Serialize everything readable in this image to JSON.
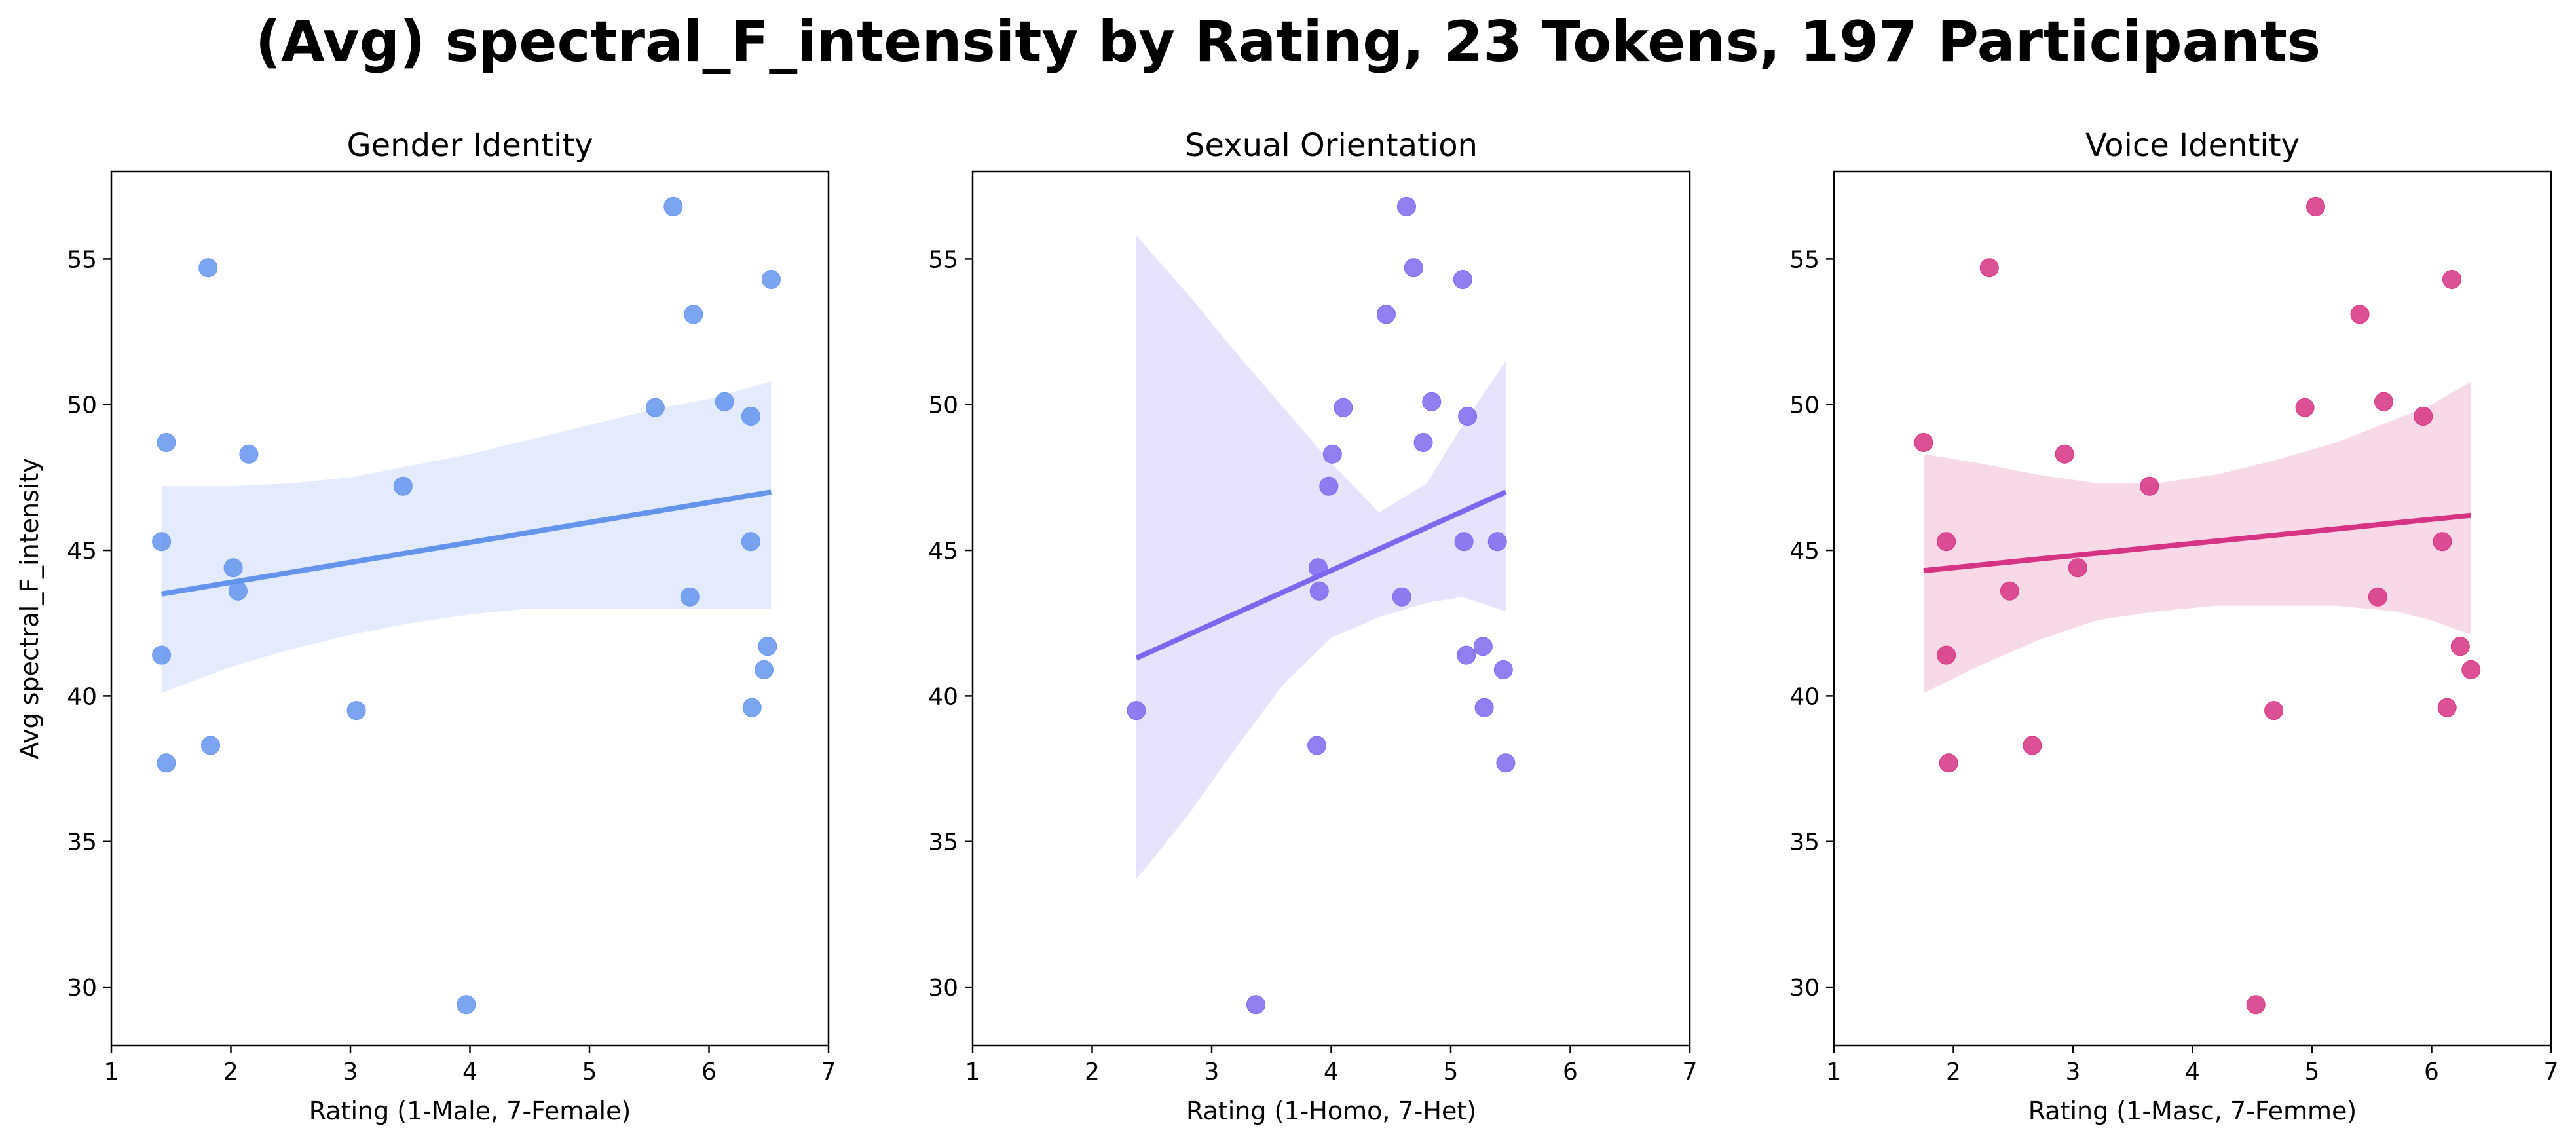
{
  "figure": {
    "title": "(Avg) spectral_F_intensity by Rating, 23 Tokens, 197 Participants"
  },
  "chart_data": [
    {
      "type": "scatter",
      "title": "Gender Identity",
      "xlabel": "Rating (1-Male, 7-Female)",
      "ylabel": "Avg spectral_F_intensity",
      "xlim": [
        1,
        7
      ],
      "ylim": [
        28,
        58
      ],
      "xticks": [
        1,
        2,
        3,
        4,
        5,
        6,
        7
      ],
      "yticks": [
        30,
        35,
        40,
        45,
        50,
        55
      ],
      "color": "#6495ED",
      "band_color": "#e3ebfc",
      "grid": false,
      "points": [
        [
          1.42,
          45.3
        ],
        [
          1.42,
          41.4
        ],
        [
          1.46,
          48.7
        ],
        [
          1.46,
          37.7
        ],
        [
          1.81,
          54.7
        ],
        [
          1.83,
          38.3
        ],
        [
          2.02,
          44.4
        ],
        [
          2.06,
          43.6
        ],
        [
          2.15,
          48.3
        ],
        [
          3.05,
          39.5
        ],
        [
          3.44,
          47.2
        ],
        [
          3.97,
          29.4
        ],
        [
          5.55,
          49.9
        ],
        [
          5.7,
          56.8
        ],
        [
          5.84,
          43.4
        ],
        [
          5.87,
          53.1
        ],
        [
          6.13,
          50.1
        ],
        [
          6.35,
          49.6
        ],
        [
          6.35,
          45.3
        ],
        [
          6.36,
          39.6
        ],
        [
          6.46,
          40.9
        ],
        [
          6.49,
          41.7
        ],
        [
          6.52,
          54.3
        ]
      ],
      "fit": {
        "x0": 1.42,
        "y0": 43.5,
        "x1": 6.52,
        "y1": 47.0
      },
      "ci_band": {
        "x": [
          1.42,
          2.0,
          2.5,
          3.0,
          3.5,
          4.0,
          4.5,
          5.0,
          5.5,
          6.0,
          6.52
        ],
        "upper": [
          47.2,
          47.2,
          47.3,
          47.5,
          47.9,
          48.3,
          48.8,
          49.3,
          49.8,
          50.2,
          50.8
        ],
        "lower": [
          40.1,
          41.0,
          41.6,
          42.1,
          42.5,
          42.8,
          43.0,
          43.0,
          43.0,
          43.0,
          43.0
        ]
      }
    },
    {
      "type": "scatter",
      "title": "Sexual Orientation",
      "xlabel": "Rating (1-Homo, 7-Het)",
      "ylabel": "",
      "xlim": [
        1,
        7
      ],
      "ylim": [
        28,
        58
      ],
      "xticks": [
        1,
        2,
        3,
        4,
        5,
        6,
        7
      ],
      "yticks": [
        30,
        35,
        40,
        45,
        50,
        55
      ],
      "color": "#7B68EE",
      "band_color": "#e6e3fc",
      "grid": false,
      "points": [
        [
          2.37,
          39.5
        ],
        [
          3.37,
          29.4
        ],
        [
          3.88,
          38.3
        ],
        [
          3.89,
          44.4
        ],
        [
          3.9,
          43.6
        ],
        [
          3.98,
          47.2
        ],
        [
          4.01,
          48.3
        ],
        [
          4.1,
          49.9
        ],
        [
          4.46,
          53.1
        ],
        [
          4.59,
          43.4
        ],
        [
          4.63,
          56.8
        ],
        [
          4.69,
          54.7
        ],
        [
          4.77,
          48.7
        ],
        [
          4.84,
          50.1
        ],
        [
          5.1,
          54.3
        ],
        [
          5.11,
          45.3
        ],
        [
          5.13,
          41.4
        ],
        [
          5.14,
          49.6
        ],
        [
          5.27,
          41.7
        ],
        [
          5.28,
          39.6
        ],
        [
          5.39,
          45.3
        ],
        [
          5.44,
          40.9
        ],
        [
          5.46,
          37.7
        ]
      ],
      "fit": {
        "x0": 2.37,
        "y0": 41.3,
        "x1": 5.46,
        "y1": 47.0
      },
      "ci_band": {
        "x": [
          2.37,
          2.8,
          3.2,
          3.6,
          4.0,
          4.4,
          4.8,
          5.1,
          5.46
        ],
        "upper": [
          55.8,
          53.8,
          51.8,
          49.9,
          48.0,
          46.3,
          47.3,
          49.3,
          51.5
        ],
        "lower": [
          33.7,
          35.9,
          38.2,
          40.4,
          42.0,
          42.7,
          43.2,
          43.4,
          42.9
        ]
      }
    },
    {
      "type": "scatter",
      "title": "Voice Identity",
      "xlabel": "Rating (1-Masc, 7-Femme)",
      "ylabel": "",
      "xlim": [
        1,
        7
      ],
      "ylim": [
        28,
        58
      ],
      "xticks": [
        1,
        2,
        3,
        4,
        5,
        6,
        7
      ],
      "yticks": [
        30,
        35,
        40,
        45,
        50,
        55
      ],
      "color": "#D63384",
      "band_color": "#f8d9e8",
      "grid": false,
      "points": [
        [
          1.75,
          48.7
        ],
        [
          1.94,
          45.3
        ],
        [
          1.94,
          41.4
        ],
        [
          1.96,
          37.7
        ],
        [
          2.3,
          54.7
        ],
        [
          2.47,
          43.6
        ],
        [
          2.66,
          38.3
        ],
        [
          2.93,
          48.3
        ],
        [
          3.04,
          44.4
        ],
        [
          3.64,
          47.2
        ],
        [
          4.53,
          29.4
        ],
        [
          4.68,
          39.5
        ],
        [
          4.94,
          49.9
        ],
        [
          5.03,
          56.8
        ],
        [
          5.4,
          53.1
        ],
        [
          5.55,
          43.4
        ],
        [
          5.6,
          50.1
        ],
        [
          5.93,
          49.6
        ],
        [
          6.09,
          45.3
        ],
        [
          6.13,
          39.6
        ],
        [
          6.17,
          54.3
        ],
        [
          6.24,
          41.7
        ],
        [
          6.33,
          40.9
        ]
      ],
      "fit": {
        "x0": 1.75,
        "y0": 44.3,
        "x1": 6.33,
        "y1": 46.2
      },
      "ci_band": {
        "x": [
          1.75,
          2.2,
          2.7,
          3.2,
          3.7,
          4.2,
          4.7,
          5.2,
          5.7,
          6.0,
          6.33
        ],
        "upper": [
          48.3,
          48.0,
          47.6,
          47.3,
          47.3,
          47.6,
          48.1,
          48.7,
          49.5,
          50.0,
          50.8
        ],
        "lower": [
          40.1,
          41.0,
          41.9,
          42.6,
          42.9,
          43.1,
          43.1,
          43.1,
          42.9,
          42.6,
          42.1
        ]
      }
    }
  ]
}
